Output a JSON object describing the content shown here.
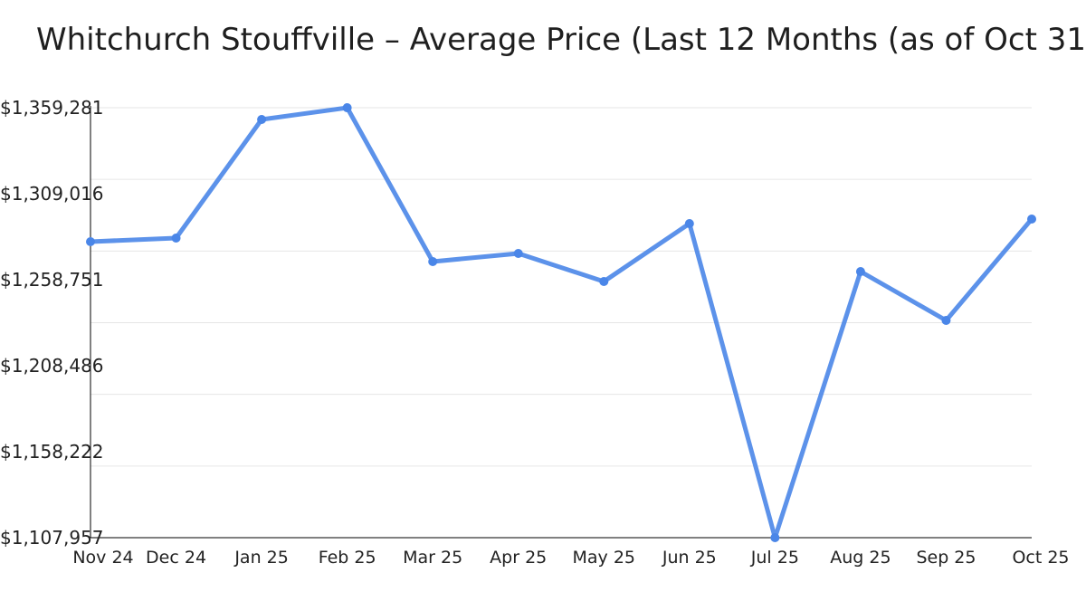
{
  "chart_data": {
    "type": "line",
    "title": "Whitchurch Stouffville – Average Price (Last 12 Months (as of Oct 31",
    "xlabel": "",
    "ylabel": "",
    "categories": [
      "Nov 24",
      "Dec 24",
      "Jan 25",
      "Feb 25",
      "Mar 25",
      "Apr 25",
      "May 25",
      "Jun 25",
      "Jul 25",
      "Aug 25",
      "Sep 25",
      "Oct 25"
    ],
    "values": [
      1280974,
      1283091,
      1352400,
      1359281,
      1269334,
      1274096,
      1257694,
      1291556,
      1107957,
      1263514,
      1234942,
      1294202
    ],
    "ylim": [
      1107957,
      1359281
    ],
    "yticks": [
      1107957,
      1158222,
      1208486,
      1258751,
      1309016,
      1359281
    ],
    "ytick_labels": [
      "$1,107,957",
      "$1,158,222",
      "$1,208,486",
      "$1,258,751",
      "$1,309,016",
      "$1,359,281"
    ],
    "grid": true,
    "legend": "none",
    "colors": {
      "line": "#4a86e8",
      "grid": "#e6e6e6",
      "axis": "#000000"
    }
  }
}
